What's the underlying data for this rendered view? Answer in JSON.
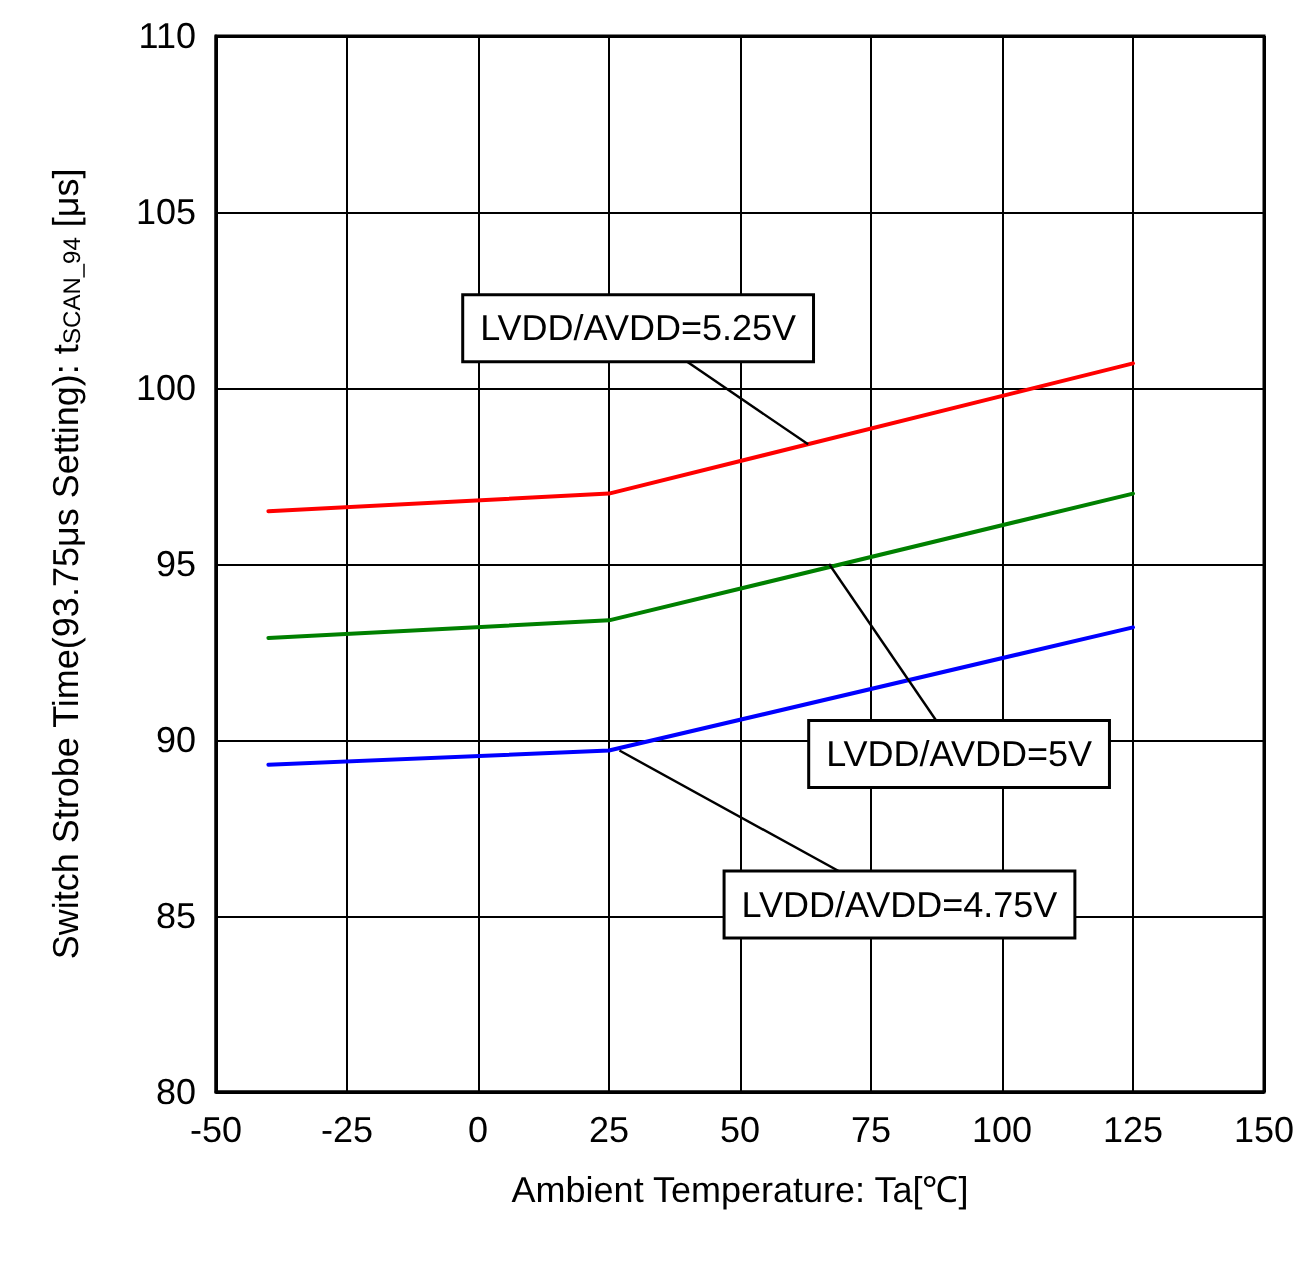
{
  "chart_data": {
    "type": "line",
    "xlabel": "Ambient Temperature: Ta[℃]",
    "ylabel": "Switch Strobe Time(93.75μs Setting): t$_{SCAN_94}$ [μs]",
    "x": [
      -40,
      25,
      125
    ],
    "series": [
      {
        "color": "#ff0000",
        "values": [
          96.5,
          97.0,
          100.7
        ]
      },
      {
        "color": "#008000",
        "values": [
          92.9,
          93.4,
          97.0
        ]
      },
      {
        "color": "#0000ff",
        "values": [
          89.3,
          89.7,
          93.2
        ]
      }
    ],
    "annotations": [
      {
        "text": "LVDD/AVDD=5.25V",
        "x": 63,
        "y": 98.4
      },
      {
        "text": "LVDD/AVDD=5V",
        "x": 67,
        "y": 95.0
      },
      {
        "text": "LVDD/AVDD=4.75V",
        "x": 27,
        "y": 89.7
      }
    ],
    "xlim": [
      -50,
      150
    ],
    "xticks": [
      -50,
      -25,
      0,
      25,
      50,
      75,
      100,
      125,
      150
    ],
    "ylim": [
      80,
      110
    ],
    "yticks": [
      80,
      85,
      90,
      95,
      100,
      105,
      110
    ],
    "grid": true,
    "marker": "none",
    "line_style": "solid"
  }
}
